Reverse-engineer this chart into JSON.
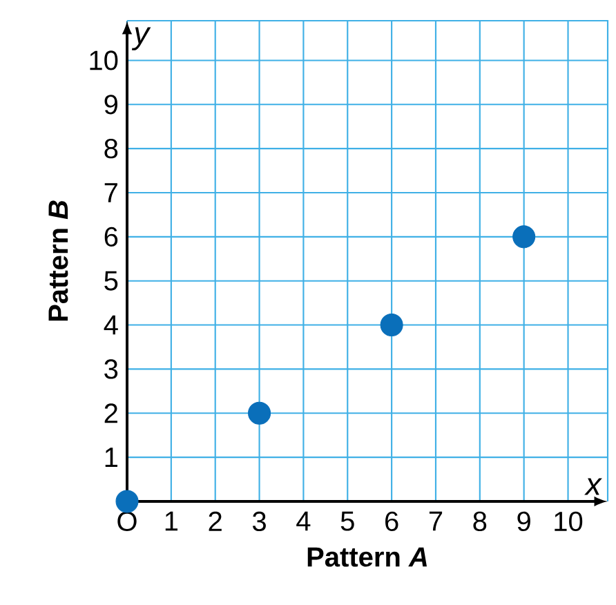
{
  "chart_data": {
    "type": "scatter",
    "xlabel": "Pattern *A*",
    "ylabel": "Pattern *B*",
    "x": [
      0,
      3,
      6,
      9
    ],
    "values": [
      0,
      2,
      4,
      6
    ],
    "color": "#0a6fba",
    "marker": "circle",
    "grid": true,
    "xlim": [
      0,
      10.9
    ],
    "ylim": [
      0,
      10.9
    ],
    "xticks": [
      {
        "value": 0,
        "label": "O"
      },
      1,
      2,
      3,
      4,
      5,
      6,
      7,
      8,
      9,
      10
    ],
    "yticks": [
      1,
      2,
      3,
      4,
      5,
      6,
      7,
      8,
      9,
      10
    ],
    "annotations": [
      "x",
      "y"
    ]
  }
}
